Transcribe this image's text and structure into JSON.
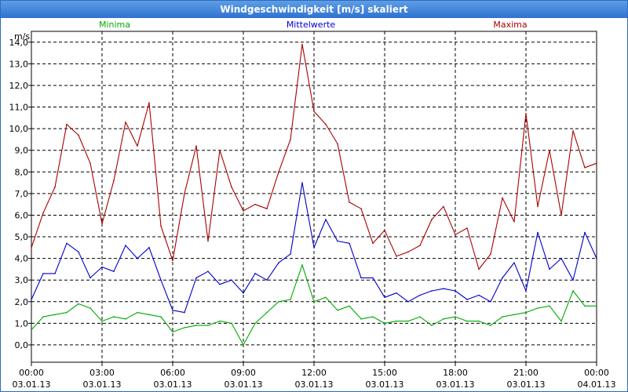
{
  "window": {
    "title": "Windgeschwindigkeit [m/s] skaliert"
  },
  "chart_data": {
    "type": "line",
    "title": "Windgeschwindigkeit [m/s] skaliert",
    "ylabel": "m/s",
    "ylim": [
      -0.8,
      14.5
    ],
    "yticks": [
      "0,0",
      "1,0",
      "2,0",
      "3,0",
      "4,0",
      "5,0",
      "6,0",
      "7,0",
      "8,0",
      "9,0",
      "10,0",
      "11,0",
      "12,0",
      "13,0",
      "14,0"
    ],
    "x_hours": [
      0,
      3,
      6,
      9,
      12,
      15,
      18,
      21,
      24
    ],
    "x_tick_times": [
      "00:00",
      "03:00",
      "06:00",
      "09:00",
      "12:00",
      "15:00",
      "18:00",
      "21:00",
      "00:00"
    ],
    "x_tick_dates": [
      "03.01.13",
      "03.01.13",
      "03.01.13",
      "03.01.13",
      "03.01.13",
      "03.01.13",
      "03.01.13",
      "03.01.13",
      "04.01.13"
    ],
    "grid": true,
    "legend": "top",
    "series": [
      {
        "name": "Minima",
        "color": "#00aa00",
        "x": [
          0,
          0.5,
          1,
          1.5,
          2,
          2.5,
          3,
          3.5,
          4,
          4.5,
          5,
          5.5,
          6,
          6.5,
          7,
          7.5,
          8,
          8.5,
          9,
          9.5,
          10,
          10.5,
          11,
          11.5,
          12,
          12.5,
          13,
          13.5,
          14,
          14.5,
          15,
          15.5,
          16,
          16.5,
          17,
          17.5,
          18,
          18.5,
          19,
          19.5,
          20,
          20.5,
          21,
          21.5,
          22,
          22.5,
          23,
          23.5,
          24
        ],
        "values": [
          0.7,
          1.3,
          1.4,
          1.5,
          1.9,
          1.7,
          1.1,
          1.3,
          1.2,
          1.5,
          1.4,
          1.3,
          0.6,
          0.8,
          0.9,
          0.9,
          1.1,
          1.0,
          0.0,
          1.0,
          1.5,
          2.0,
          2.1,
          3.7,
          2.0,
          2.2,
          1.6,
          1.8,
          1.2,
          1.3,
          1.0,
          1.1,
          1.1,
          1.3,
          0.9,
          1.2,
          1.3,
          1.1,
          1.1,
          0.9,
          1.3,
          1.4,
          1.5,
          1.7,
          1.8,
          1.1,
          2.5,
          1.8,
          1.8
        ]
      },
      {
        "name": "Mittelwerte",
        "color": "#0000cc",
        "x": [
          0,
          0.5,
          1,
          1.5,
          2,
          2.5,
          3,
          3.5,
          4,
          4.5,
          5,
          5.5,
          6,
          6.5,
          7,
          7.5,
          8,
          8.5,
          9,
          9.5,
          10,
          10.5,
          11,
          11.5,
          12,
          12.5,
          13,
          13.5,
          14,
          14.5,
          15,
          15.5,
          16,
          16.5,
          17,
          17.5,
          18,
          18.5,
          19,
          19.5,
          20,
          20.5,
          21,
          21.5,
          22,
          22.5,
          23,
          23.5,
          24
        ],
        "values": [
          2.1,
          3.3,
          3.3,
          4.7,
          4.3,
          3.1,
          3.6,
          3.4,
          4.6,
          4.0,
          4.5,
          3.0,
          1.6,
          1.5,
          3.1,
          3.4,
          2.8,
          3.0,
          2.4,
          3.3,
          3.0,
          3.8,
          4.2,
          7.5,
          4.5,
          5.8,
          4.8,
          4.7,
          3.1,
          3.1,
          2.2,
          2.4,
          2.0,
          2.3,
          2.5,
          2.6,
          2.5,
          2.1,
          2.3,
          2.0,
          3.1,
          3.8,
          2.5,
          5.2,
          3.5,
          4.0,
          3.0,
          5.2,
          4.0
        ]
      },
      {
        "name": "Maxima",
        "color": "#aa0000",
        "x": [
          0,
          0.5,
          1,
          1.5,
          2,
          2.5,
          3,
          3.5,
          4,
          4.5,
          5,
          5.5,
          6,
          6.5,
          7,
          7.5,
          8,
          8.5,
          9,
          9.5,
          10,
          10.5,
          11,
          11.5,
          12,
          12.5,
          13,
          13.5,
          14,
          14.5,
          15,
          15.5,
          16,
          16.5,
          17,
          17.5,
          18,
          18.5,
          19,
          19.5,
          20,
          20.5,
          21,
          21.5,
          22,
          22.5,
          23,
          23.5,
          24
        ],
        "values": [
          4.5,
          6.1,
          7.3,
          10.2,
          9.7,
          8.4,
          5.6,
          7.6,
          10.3,
          9.2,
          11.2,
          5.5,
          3.9,
          7.0,
          9.2,
          4.8,
          9.0,
          7.3,
          6.2,
          6.5,
          6.3,
          8.0,
          9.5,
          13.9,
          10.8,
          10.2,
          9.3,
          6.6,
          6.3,
          4.7,
          5.3,
          4.1,
          4.3,
          4.6,
          5.8,
          6.4,
          5.1,
          5.4,
          3.5,
          4.2,
          6.8,
          5.7,
          10.7,
          6.4,
          9.0,
          6.0,
          9.9,
          8.2,
          8.4
        ]
      }
    ]
  }
}
